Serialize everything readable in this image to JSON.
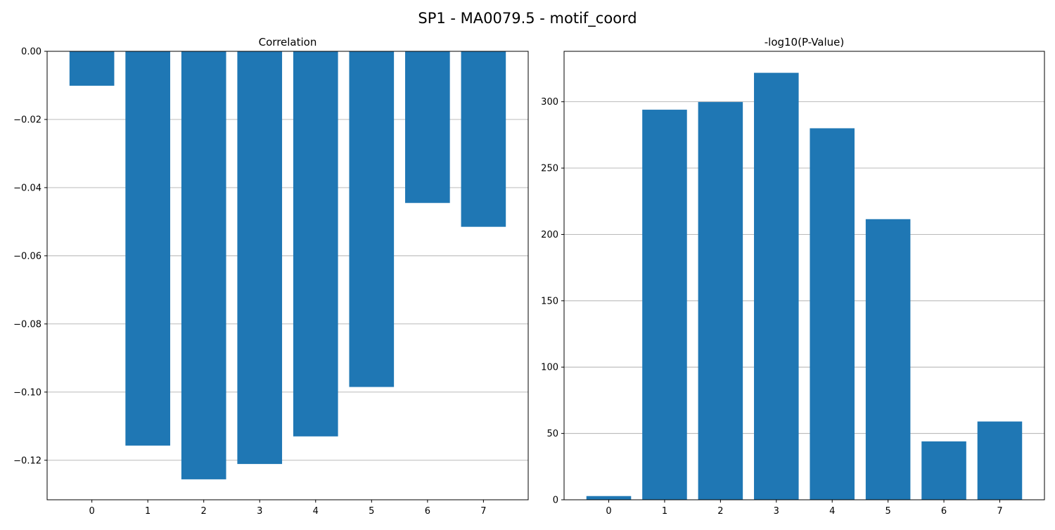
{
  "figure": {
    "title": "SP1 - MA0079.5 - motif_coord"
  },
  "chart_data": [
    {
      "type": "bar",
      "title": "Correlation",
      "xlabel": "",
      "ylabel": "",
      "categories": [
        "0",
        "1",
        "2",
        "3",
        "4",
        "5",
        "6",
        "7"
      ],
      "values": [
        -0.0101,
        -0.1157,
        -0.1256,
        -0.1211,
        -0.113,
        -0.0985,
        -0.0445,
        -0.0515
      ],
      "ylim": [
        -0.1316,
        0.0
      ],
      "yticks": [
        0.0,
        -0.02,
        -0.04,
        -0.06,
        -0.08,
        -0.1,
        -0.12
      ],
      "ytick_labels": [
        "0.00",
        "−0.02",
        "−0.04",
        "−0.06",
        "−0.08",
        "−0.10",
        "−0.12"
      ],
      "grid": "y",
      "bar_color": "#1f77b4"
    },
    {
      "type": "bar",
      "title": "-log10(P-Value)",
      "xlabel": "",
      "ylabel": "",
      "categories": [
        "0",
        "1",
        "2",
        "3",
        "4",
        "5",
        "6",
        "7"
      ],
      "values": [
        2.8,
        294.0,
        299.8,
        321.8,
        280.0,
        211.5,
        44.0,
        59.0
      ],
      "ylim": [
        0,
        338
      ],
      "yticks": [
        0,
        50,
        100,
        150,
        200,
        250,
        300
      ],
      "ytick_labels": [
        "0",
        "50",
        "100",
        "150",
        "200",
        "250",
        "300"
      ],
      "grid": "y",
      "bar_color": "#1f77b4"
    }
  ]
}
